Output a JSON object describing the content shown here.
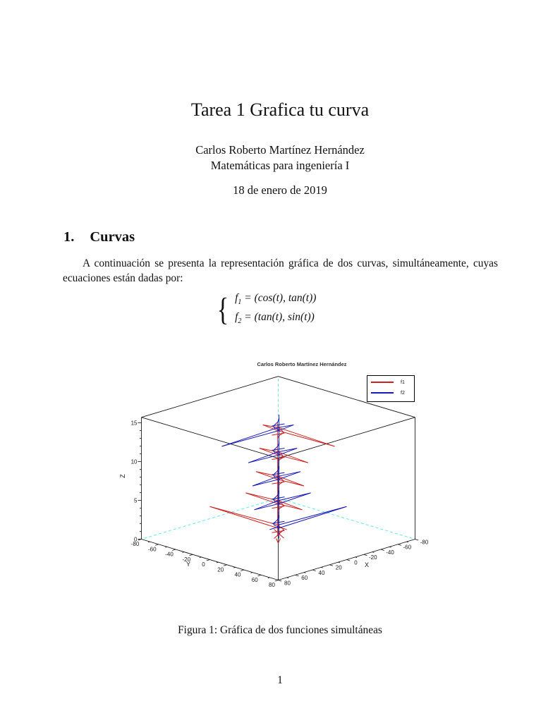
{
  "document": {
    "title": "Tarea 1 Grafica tu curva",
    "author": "Carlos Roberto Martínez Hernández",
    "course": "Matemáticas para ingeniería I",
    "date": "18 de enero de 2019",
    "section_number": "1.",
    "section_title": "Curvas",
    "paragraph": "A continuación se presenta la representación gráfica de dos curvas, simultáneamente, cuyas ecuaciones están dadas por:",
    "equation": {
      "f_name": "f",
      "f1_sub": "1",
      "f1_rhs": " = (cos(t), tan(t))",
      "f2_sub": "2",
      "f2_rhs": " = (tan(t), sin(t))"
    },
    "caption": "Figura 1: Gráfica de dos funciones simultáneas",
    "page_number": "1"
  },
  "figure": {
    "title": "Carlos Roberto Martínez Hernández",
    "legend": [
      {
        "label": "f1",
        "color": "#cc2020"
      },
      {
        "label": "f2",
        "color": "#1818b4"
      }
    ],
    "colors": {
      "box": "#111111",
      "hidden_edges": "#76e6e6",
      "tick_text": "#1a1a1a"
    },
    "axes": {
      "x_label": "X",
      "y_label": "Y",
      "z_label": "Z",
      "x_tick_labels": [
        80,
        60,
        40,
        20,
        0,
        -20,
        -40,
        -60,
        -80
      ],
      "y_tick_labels": [
        -80,
        -60,
        -40,
        -20,
        0,
        20,
        40,
        60,
        80
      ],
      "z_tick_labels": [
        0,
        5,
        10,
        15
      ],
      "x_range": [
        -80,
        80
      ],
      "y_range": [
        -80,
        80
      ],
      "z_range": [
        0,
        15.71
      ]
    },
    "chart_data": {
      "type": "line",
      "title": "Carlos Roberto Martínez Hernández",
      "series": [
        {
          "name": "f1",
          "formula": "(cos(t), tan(t))",
          "color": "#cc2020"
        },
        {
          "name": "f2",
          "formula": "(tan(t), sin(t))",
          "color": "#1818b4"
        }
      ],
      "t_range": [
        0,
        15.71
      ],
      "xlim": [
        -80,
        80
      ],
      "ylim": [
        -80,
        80
      ],
      "zlim": [
        0,
        15.71
      ],
      "singularities": [
        1.571,
        4.712,
        7.854,
        11.0,
        14.137
      ],
      "clusters": [
        {
          "t": 1.571,
          "ry_pos": 10,
          "ry_neg": 80,
          "bx_pos": 10,
          "bx_neg": 80
        },
        {
          "t": 4.712,
          "ry_pos": 28,
          "ry_neg": 38,
          "bx_pos": 28,
          "bx_neg": 38
        },
        {
          "t": 7.854,
          "ry_pos": 30,
          "ry_neg": 26,
          "bx_pos": 30,
          "bx_neg": 26
        },
        {
          "t": 11.0,
          "ry_pos": 35,
          "ry_neg": 22,
          "bx_pos": 35,
          "bx_neg": 22
        },
        {
          "t": 14.137,
          "ry_pos": 66,
          "ry_neg": 18,
          "bx_pos": 66,
          "bx_neg": 18
        }
      ]
    }
  }
}
